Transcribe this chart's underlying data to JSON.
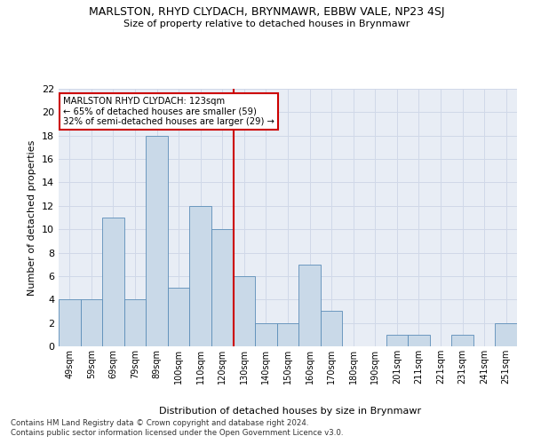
{
  "title": "MARLSTON, RHYD CLYDACH, BRYNMAWR, EBBW VALE, NP23 4SJ",
  "subtitle": "Size of property relative to detached houses in Brynmawr",
  "xlabel": "Distribution of detached houses by size in Brynmawr",
  "ylabel": "Number of detached properties",
  "categories": [
    "49sqm",
    "59sqm",
    "69sqm",
    "79sqm",
    "89sqm",
    "100sqm",
    "110sqm",
    "120sqm",
    "130sqm",
    "140sqm",
    "150sqm",
    "160sqm",
    "170sqm",
    "180sqm",
    "190sqm",
    "201sqm",
    "211sqm",
    "221sqm",
    "231sqm",
    "241sqm",
    "251sqm"
  ],
  "values": [
    4,
    4,
    11,
    4,
    18,
    5,
    12,
    10,
    6,
    2,
    2,
    7,
    3,
    0,
    0,
    1,
    1,
    0,
    1,
    0,
    2
  ],
  "bar_color": "#c9d9e8",
  "bar_edge_color": "#5b8db8",
  "vline_x_idx": 7,
  "vline_color": "#cc0000",
  "annotation_title": "MARLSTON RHYD CLYDACH: 123sqm",
  "annotation_line1": "← 65% of detached houses are smaller (59)",
  "annotation_line2": "32% of semi-detached houses are larger (29) →",
  "annotation_box_color": "#ffffff",
  "annotation_box_edge_color": "#cc0000",
  "ylim": [
    0,
    22
  ],
  "yticks": [
    0,
    2,
    4,
    6,
    8,
    10,
    12,
    14,
    16,
    18,
    20,
    22
  ],
  "grid_color": "#d0d8e8",
  "background_color": "#e8edf5",
  "footnote1": "Contains HM Land Registry data © Crown copyright and database right 2024.",
  "footnote2": "Contains public sector information licensed under the Open Government Licence v3.0."
}
